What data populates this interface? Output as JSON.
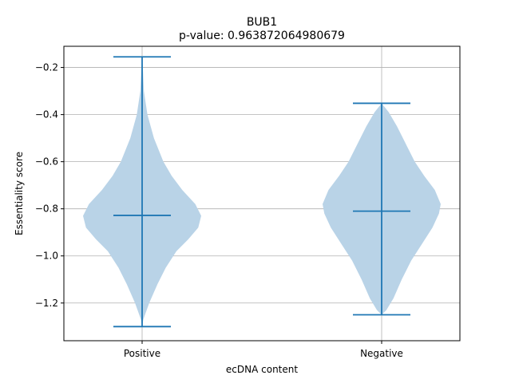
{
  "chart_data": {
    "type": "violin",
    "title": "BUB1",
    "subtitle": "p-value: 0.963872064980679",
    "xlabel": "ecDNA content",
    "ylabel": "Essentiality score",
    "ylim": [
      -1.36,
      -0.11
    ],
    "yticks": [
      -0.2,
      -0.4,
      -0.6,
      -0.8,
      -1.0,
      -1.2
    ],
    "ytick_labels": [
      "−0.2",
      "−0.4",
      "−0.6",
      "−0.8",
      "−1.0",
      "−1.2"
    ],
    "grid": true,
    "colors": {
      "fill": "#b9d3e7",
      "line": "#1f77b4",
      "grid": "#b0b0b0"
    },
    "categories": [
      "Positive",
      "Negative"
    ],
    "violins": [
      {
        "name": "Positive",
        "min": -1.3,
        "max": -0.155,
        "median": -0.828,
        "density_profile": [
          [
            -1.3,
            0.0
          ],
          [
            -1.27,
            0.02
          ],
          [
            -1.2,
            0.12
          ],
          [
            -1.12,
            0.26
          ],
          [
            -1.05,
            0.4
          ],
          [
            -0.98,
            0.58
          ],
          [
            -0.93,
            0.78
          ],
          [
            -0.88,
            0.95
          ],
          [
            -0.83,
            1.0
          ],
          [
            -0.78,
            0.9
          ],
          [
            -0.72,
            0.68
          ],
          [
            -0.66,
            0.5
          ],
          [
            -0.6,
            0.36
          ],
          [
            -0.5,
            0.2
          ],
          [
            -0.4,
            0.09
          ],
          [
            -0.3,
            0.03
          ],
          [
            -0.2,
            0.012
          ],
          [
            -0.155,
            0.0
          ]
        ]
      },
      {
        "name": "Negative",
        "min": -1.25,
        "max": -0.352,
        "median": -0.81,
        "density_profile": [
          [
            -1.25,
            0.0
          ],
          [
            -1.23,
            0.08
          ],
          [
            -1.18,
            0.2
          ],
          [
            -1.1,
            0.34
          ],
          [
            -1.02,
            0.5
          ],
          [
            -0.95,
            0.68
          ],
          [
            -0.88,
            0.86
          ],
          [
            -0.82,
            0.97
          ],
          [
            -0.78,
            1.0
          ],
          [
            -0.72,
            0.9
          ],
          [
            -0.66,
            0.72
          ],
          [
            -0.6,
            0.56
          ],
          [
            -0.52,
            0.4
          ],
          [
            -0.45,
            0.26
          ],
          [
            -0.39,
            0.12
          ],
          [
            -0.352,
            0.0
          ]
        ]
      }
    ]
  }
}
